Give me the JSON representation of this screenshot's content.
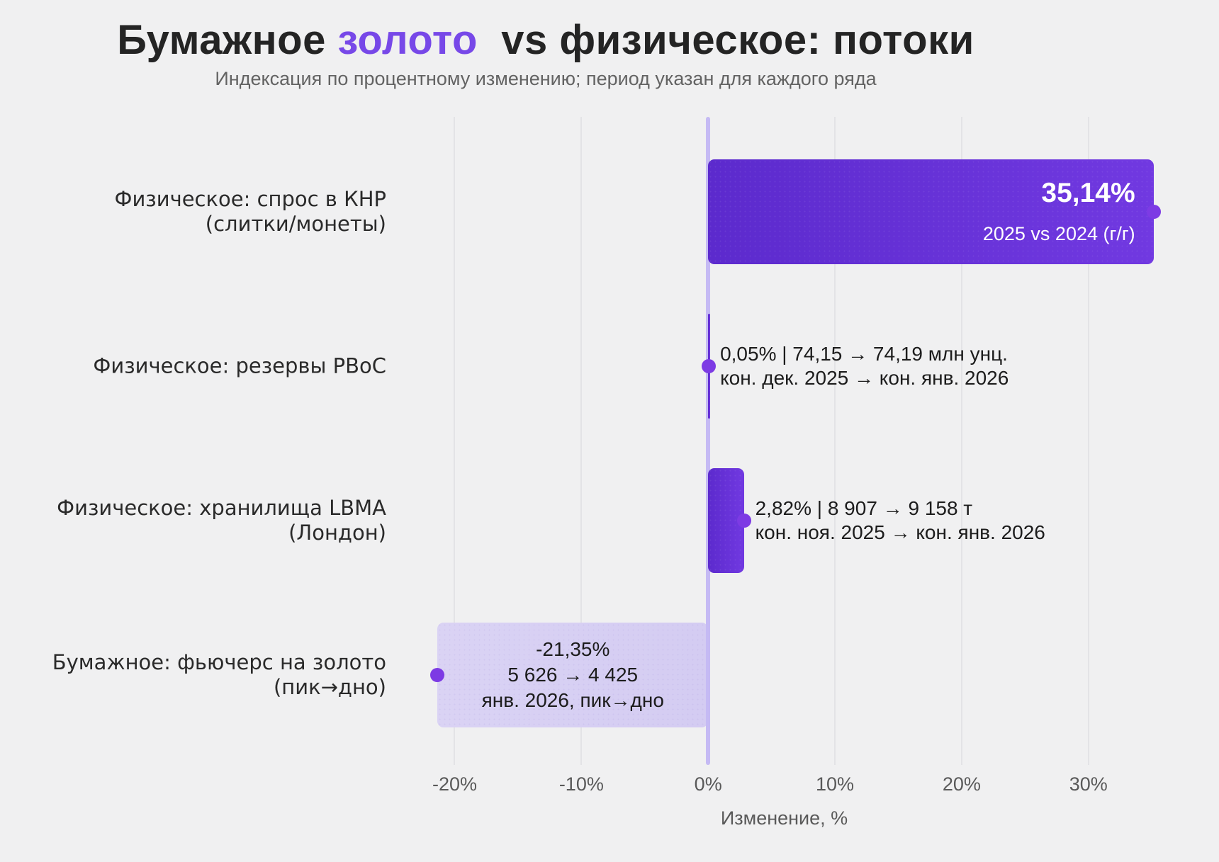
{
  "title": {
    "part1": "Бумажное ",
    "accent": "золото",
    "part2": "  vs физическое: потоки"
  },
  "subtitle": "Индексация по процентному изменению; период указан для каждого ряда",
  "colors": {
    "background": "#f0f0f1",
    "title_text": "#242424",
    "title_accent": "#7748e8",
    "subtitle_text": "#636363",
    "bar_solid": "#6230d6",
    "bar_light": "#d7d0f3",
    "dot": "#7d3be4",
    "zero_line": "#c5baf4",
    "gridline": "#e3e3e6",
    "annotation_dark": "#1c1c1c",
    "annotation_light": "#ffffff"
  },
  "chart_data": {
    "type": "bar",
    "orientation": "horizontal",
    "title": "Бумажное золото vs физическое: потоки",
    "subtitle": "Индексация по процентному изменению; период указан для каждого ряда",
    "xlabel": "Изменение, %",
    "xlim": [
      -24.5,
      36.5
    ],
    "grid": true,
    "legend": false,
    "x_ticks": [
      {
        "value": -20,
        "label": "-20%"
      },
      {
        "value": -10,
        "label": "-10%"
      },
      {
        "value": 0,
        "label": "0%"
      },
      {
        "value": 10,
        "label": "10%"
      },
      {
        "value": 20,
        "label": "20%"
      },
      {
        "value": 30,
        "label": "30%"
      }
    ],
    "categories": [
      "Физическое: спрос в КНР (слитки/монеты)",
      "Физическое: резервы PBoC",
      "Физическое: хранилища LBMA (Лондон)",
      "Бумажное: фьючерс на золото (пик→дно)"
    ],
    "rows": [
      {
        "label_lines": [
          "Физическое: спрос в КНР",
          "(слитки/монеты)"
        ],
        "value": 35.14,
        "bar_style": "solid",
        "annotation_position": "inside-right",
        "annotation_lines": [
          "35,14%",
          "2025 vs 2024 (г/г)"
        ]
      },
      {
        "label_lines": [
          "Физическое: резервы PBoC"
        ],
        "value": 0.05,
        "bar_style": "solid",
        "annotation_position": "right",
        "annotation_lines": [
          "0,05% | 74,15 → 74,19 млн унц.",
          "кон. дек. 2025 → кон. янв. 2026"
        ]
      },
      {
        "label_lines": [
          "Физическое: хранилища LBMA",
          "(Лондон)"
        ],
        "value": 2.82,
        "bar_style": "solid",
        "annotation_position": "right",
        "annotation_lines": [
          "2,82% | 8 907 → 9 158 т",
          "кон. ноя. 2025 → кон. янв. 2026"
        ]
      },
      {
        "label_lines": [
          "Бумажное: фьючерс на золото",
          "(пик→дно)"
        ],
        "value": -21.35,
        "bar_style": "light",
        "annotation_position": "inside-center",
        "annotation_lines": [
          "-21,35%",
          "5 626 → 4 425",
          "янв. 2026, пик→дно"
        ]
      }
    ]
  }
}
